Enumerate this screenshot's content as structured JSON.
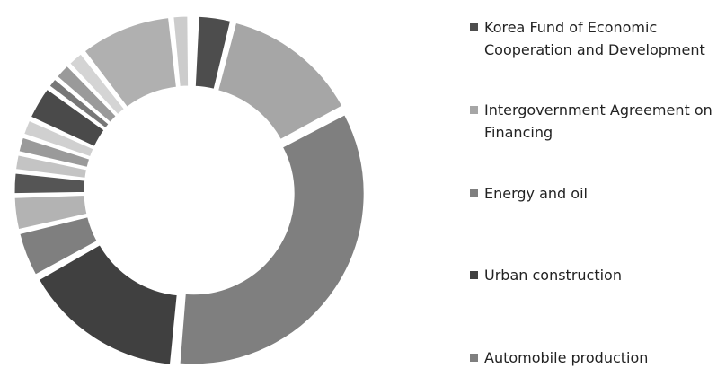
{
  "chart_data": {
    "type": "donut",
    "categories": [
      "Korea Fund of Economic Cooperation and Development",
      "Intergovernment Agreement on Financing",
      "Energy and oil",
      "Urban construction",
      "Automobile production",
      null,
      null,
      null,
      null,
      null,
      null,
      null,
      null,
      null,
      null,
      null
    ],
    "values": [
      3,
      12,
      31,
      14,
      4,
      3,
      2,
      1.5,
      1.5,
      1.5,
      3,
      1,
      1.5,
      1.5,
      8,
      1.5
    ],
    "colors": [
      "#4d4d4d",
      "#a6a6a6",
      "#7f7f7f",
      "#404040",
      "#7f7f7f",
      "#b3b3b3",
      "#555555",
      "#c4c4c4",
      "#9a9a9a",
      "#d0d0d0",
      "#4a4a4a",
      "#777777",
      "#9a9a9a",
      "#d4d4d4",
      "#b0b0b0",
      "#cccccc"
    ],
    "legend": "right"
  }
}
